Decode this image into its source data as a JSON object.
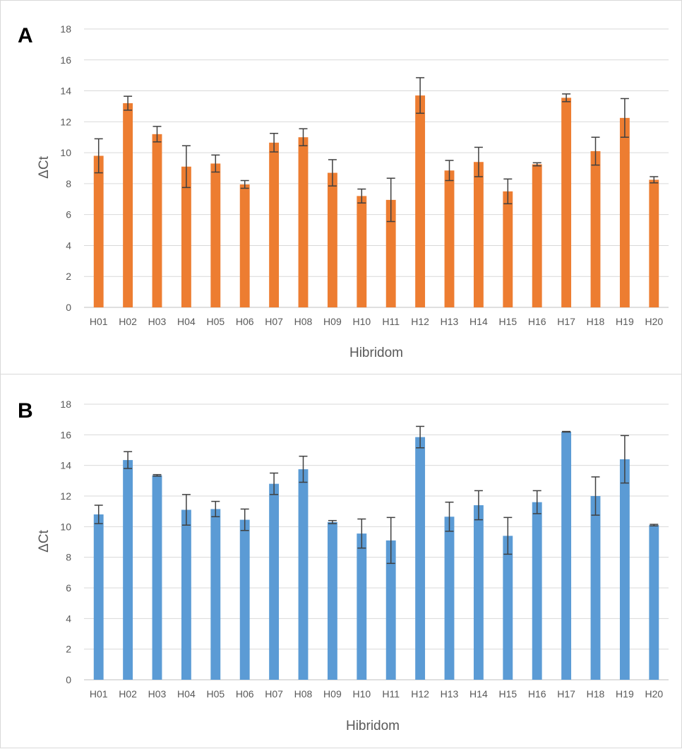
{
  "chart_data": [
    {
      "panel_label": "A",
      "type": "bar",
      "xlabel": "Hibridom",
      "ylabel": "ΔCt",
      "ylim": [
        0,
        18
      ],
      "yticks": [
        0,
        2,
        4,
        6,
        8,
        10,
        12,
        14,
        16,
        18
      ],
      "grid": true,
      "color": "#ED7D31",
      "categories": [
        "H01",
        "H02",
        "H03",
        "H04",
        "H05",
        "H06",
        "H07",
        "H08",
        "H09",
        "H10",
        "H11",
        "H12",
        "H13",
        "H14",
        "H15",
        "H16",
        "H17",
        "H18",
        "H19",
        "H20"
      ],
      "values": [
        9.8,
        13.2,
        11.2,
        9.1,
        9.3,
        7.95,
        10.65,
        11.0,
        8.7,
        7.2,
        6.95,
        13.7,
        8.85,
        9.4,
        7.5,
        9.25,
        13.55,
        10.1,
        12.25,
        8.25
      ],
      "errors": [
        1.1,
        0.45,
        0.5,
        1.35,
        0.55,
        0.25,
        0.6,
        0.55,
        0.85,
        0.45,
        1.4,
        1.15,
        0.65,
        0.95,
        0.8,
        0.1,
        0.25,
        0.9,
        1.25,
        0.2
      ]
    },
    {
      "panel_label": "B",
      "type": "bar",
      "xlabel": "Hibridom",
      "ylabel": "ΔCt",
      "ylim": [
        0,
        18
      ],
      "yticks": [
        0,
        2,
        4,
        6,
        8,
        10,
        12,
        14,
        16,
        18
      ],
      "grid": true,
      "color": "#5B9BD5",
      "categories": [
        "H01",
        "H02",
        "H03",
        "H04",
        "H05",
        "H06",
        "H07",
        "H08",
        "H09",
        "H10",
        "H11",
        "H12",
        "H13",
        "H14",
        "H15",
        "H16",
        "H17",
        "H18",
        "H19",
        "H20"
      ],
      "values": [
        10.8,
        14.35,
        13.35,
        11.1,
        11.15,
        10.45,
        12.8,
        13.75,
        10.3,
        9.55,
        9.1,
        15.85,
        10.65,
        11.4,
        9.4,
        11.6,
        16.2,
        12.0,
        14.4,
        10.1
      ],
      "errors": [
        0.6,
        0.55,
        0.05,
        1.0,
        0.5,
        0.7,
        0.7,
        0.85,
        0.1,
        0.95,
        1.5,
        0.7,
        0.95,
        0.95,
        1.2,
        0.75,
        0.02,
        1.25,
        1.55,
        0.05
      ]
    }
  ]
}
